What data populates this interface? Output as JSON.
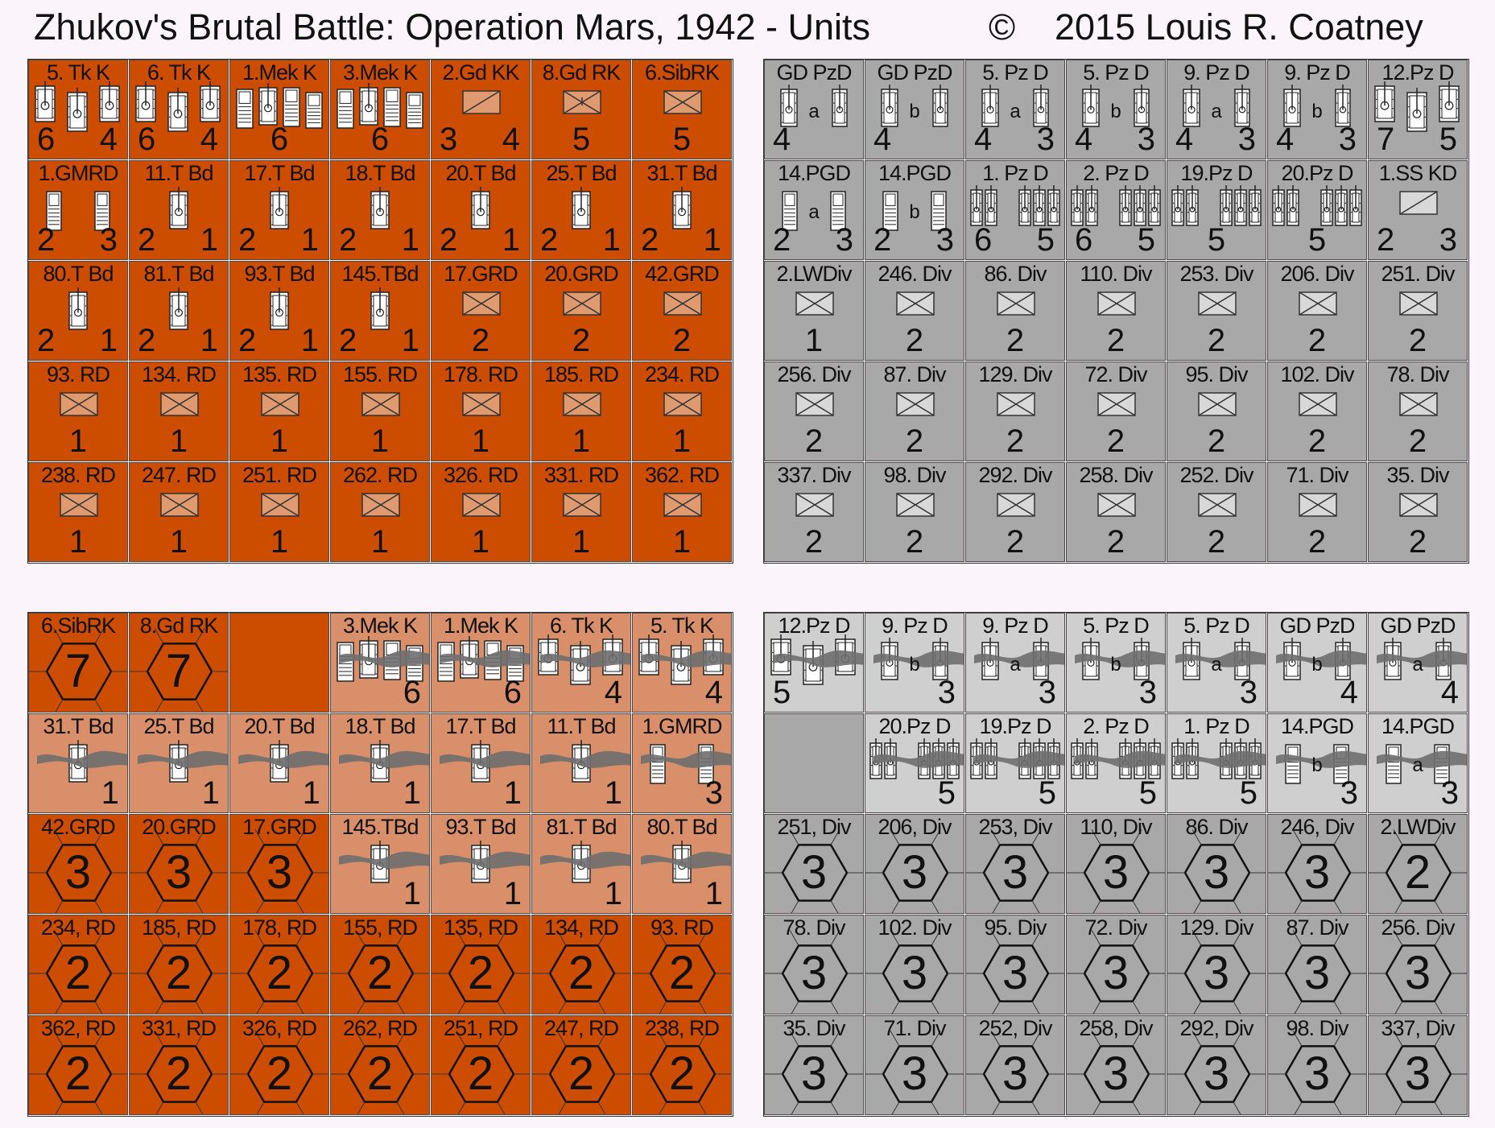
{
  "title": {
    "main": "Zhukov's Brutal Battle:  Operation Mars, 1942 - Units",
    "copyright_symbol": "©",
    "year_author": "2015  Louis R. Coatney"
  },
  "colors": {
    "soviet_full": "#cc4d00",
    "soviet_reduced": "#d9906a",
    "german_full": "#a8a8a8",
    "german_reduced": "#cfcfcf",
    "background": "#fbf5fb"
  },
  "soviet_front": [
    [
      {
        "label": "5. Tk  K",
        "type": "tank3",
        "left": "6",
        "right": "4"
      },
      {
        "label": "6. Tk  K",
        "type": "tank3",
        "left": "6",
        "right": "4"
      },
      {
        "label": "1.Mek K",
        "type": "mech3",
        "center": "6"
      },
      {
        "label": "3.Mek K",
        "type": "mech3",
        "center": "6"
      },
      {
        "label": "2.Gd KK",
        "type": "cav",
        "left": "3",
        "right": "4"
      },
      {
        "label": "8.Gd RK",
        "type": "inf_air",
        "center": "5"
      },
      {
        "label": "6.SibRK",
        "type": "inf",
        "center": "5"
      }
    ],
    [
      {
        "label": "1.GMRD",
        "type": "motor2",
        "left": "2",
        "right": "3"
      },
      {
        "label": "11.T Bd",
        "type": "tank1",
        "left": "2",
        "right": "1"
      },
      {
        "label": "17.T Bd",
        "type": "tank1",
        "left": "2",
        "right": "1"
      },
      {
        "label": "18.T Bd",
        "type": "tank1",
        "left": "2",
        "right": "1"
      },
      {
        "label": "20.T Bd",
        "type": "tank1",
        "left": "2",
        "right": "1"
      },
      {
        "label": "25.T Bd",
        "type": "tank1",
        "left": "2",
        "right": "1"
      },
      {
        "label": "31.T Bd",
        "type": "tank1",
        "left": "2",
        "right": "1"
      }
    ],
    [
      {
        "label": "80.T Bd",
        "type": "tank1",
        "left": "2",
        "right": "1"
      },
      {
        "label": "81.T Bd",
        "type": "tank1",
        "left": "2",
        "right": "1"
      },
      {
        "label": "93.T Bd",
        "type": "tank1",
        "left": "2",
        "right": "1"
      },
      {
        "label": "145.TBd",
        "type": "tank1",
        "left": "2",
        "right": "1"
      },
      {
        "label": "17.GRD",
        "type": "inf",
        "center": "2"
      },
      {
        "label": "20.GRD",
        "type": "inf",
        "center": "2"
      },
      {
        "label": "42.GRD",
        "type": "inf",
        "center": "2"
      }
    ],
    [
      {
        "label": "93. RD",
        "type": "inf",
        "center": "1"
      },
      {
        "label": "134. RD",
        "type": "inf",
        "center": "1"
      },
      {
        "label": "135. RD",
        "type": "inf",
        "center": "1"
      },
      {
        "label": "155. RD",
        "type": "inf",
        "center": "1"
      },
      {
        "label": "178. RD",
        "type": "inf",
        "center": "1"
      },
      {
        "label": "185. RD",
        "type": "inf",
        "center": "1"
      },
      {
        "label": "234. RD",
        "type": "inf",
        "center": "1"
      }
    ],
    [
      {
        "label": "238. RD",
        "type": "inf",
        "center": "1"
      },
      {
        "label": "247. RD",
        "type": "inf",
        "center": "1"
      },
      {
        "label": "251. RD",
        "type": "inf",
        "center": "1"
      },
      {
        "label": "262. RD",
        "type": "inf",
        "center": "1"
      },
      {
        "label": "326. RD",
        "type": "inf",
        "center": "1"
      },
      {
        "label": "331. RD",
        "type": "inf",
        "center": "1"
      },
      {
        "label": "362. RD",
        "type": "inf",
        "center": "1"
      }
    ]
  ],
  "german_front": [
    [
      {
        "label": "GD PzD",
        "type": "tank2",
        "mid": "a",
        "left": "4"
      },
      {
        "label": "GD PzD",
        "type": "tank2",
        "mid": "b",
        "left": "4"
      },
      {
        "label": "5. Pz D",
        "type": "tank2",
        "mid": "a",
        "left": "4",
        "right": "3"
      },
      {
        "label": "5. Pz D",
        "type": "tank2",
        "mid": "b",
        "left": "4",
        "right": "3"
      },
      {
        "label": "9. Pz D",
        "type": "tank2",
        "mid": "a",
        "left": "4",
        "right": "3"
      },
      {
        "label": "9. Pz D",
        "type": "tank2",
        "mid": "b",
        "left": "4",
        "right": "3"
      },
      {
        "label": "12.Pz D",
        "type": "tank3",
        "left": "7",
        "right": "5"
      }
    ],
    [
      {
        "label": "14.PGD",
        "type": "motor2",
        "mid": "a",
        "left": "2",
        "right": "3"
      },
      {
        "label": "14.PGD",
        "type": "motor2",
        "mid": "b",
        "left": "2",
        "right": "3"
      },
      {
        "label": "1. Pz D",
        "type": "tank4",
        "left": "6",
        "right": "5"
      },
      {
        "label": "2. Pz D",
        "type": "tank4",
        "left": "6",
        "right": "5"
      },
      {
        "label": "19.Pz D",
        "type": "tank4",
        "center": "5"
      },
      {
        "label": "20.Pz D",
        "type": "tank4",
        "center": "5"
      },
      {
        "label": "1.SS KD",
        "type": "cav",
        "left": "2",
        "right": "3"
      }
    ],
    [
      {
        "label": "2.LWDiv",
        "type": "inf",
        "center": "1"
      },
      {
        "label": "246. Div",
        "type": "inf",
        "center": "2"
      },
      {
        "label": "86. Div",
        "type": "inf",
        "center": "2"
      },
      {
        "label": "110. Div",
        "type": "inf",
        "center": "2"
      },
      {
        "label": "253. Div",
        "type": "inf",
        "center": "2"
      },
      {
        "label": "206. Div",
        "type": "inf",
        "center": "2"
      },
      {
        "label": "251. Div",
        "type": "inf",
        "center": "2"
      }
    ],
    [
      {
        "label": "256. Div",
        "type": "inf",
        "center": "2"
      },
      {
        "label": "87. Div",
        "type": "inf",
        "center": "2"
      },
      {
        "label": "129. Div",
        "type": "inf",
        "center": "2"
      },
      {
        "label": "72. Div",
        "type": "inf",
        "center": "2"
      },
      {
        "label": "95. Div",
        "type": "inf",
        "center": "2"
      },
      {
        "label": "102. Div",
        "type": "inf",
        "center": "2"
      },
      {
        "label": "78. Div",
        "type": "inf",
        "center": "2"
      }
    ],
    [
      {
        "label": "337. Div",
        "type": "inf",
        "center": "2"
      },
      {
        "label": "98. Div",
        "type": "inf",
        "center": "2"
      },
      {
        "label": "292. Div",
        "type": "inf",
        "center": "2"
      },
      {
        "label": "258. Div",
        "type": "inf",
        "center": "2"
      },
      {
        "label": "252. Div",
        "type": "inf",
        "center": "2"
      },
      {
        "label": "71. Div",
        "type": "inf",
        "center": "2"
      },
      {
        "label": "35. Div",
        "type": "inf",
        "center": "2"
      }
    ]
  ],
  "soviet_back": [
    [
      {
        "label": "6.SibRK",
        "type": "hex",
        "center": "7",
        "shade": "full"
      },
      {
        "label": "8.Gd RK",
        "type": "hex",
        "center": "7",
        "shade": "full"
      },
      {
        "type": "blank",
        "shade": "full"
      },
      {
        "label": "3.Mek K",
        "type": "mech3",
        "right": "6",
        "shade": "reduced",
        "smoke": true
      },
      {
        "label": "1.Mek K",
        "type": "mech3",
        "right": "6",
        "shade": "reduced",
        "smoke": true
      },
      {
        "label": "6. Tk  K",
        "type": "tank3",
        "right": "4",
        "shade": "reduced",
        "smoke": true
      },
      {
        "label": "5. Tk  K",
        "type": "tank3",
        "right": "4",
        "shade": "reduced",
        "smoke": true
      }
    ],
    [
      {
        "label": "31.T Bd",
        "type": "tank1",
        "right": "1",
        "shade": "reduced",
        "smoke": true
      },
      {
        "label": "25.T Bd",
        "type": "tank1",
        "right": "1",
        "shade": "reduced",
        "smoke": true
      },
      {
        "label": "20.T Bd",
        "type": "tank1",
        "right": "1",
        "shade": "reduced",
        "smoke": true
      },
      {
        "label": "18.T Bd",
        "type": "tank1",
        "right": "1",
        "shade": "reduced",
        "smoke": true
      },
      {
        "label": "17.T Bd",
        "type": "tank1",
        "right": "1",
        "shade": "reduced",
        "smoke": true
      },
      {
        "label": "11.T Bd",
        "type": "tank1",
        "right": "1",
        "shade": "reduced",
        "smoke": true
      },
      {
        "label": "1.GMRD",
        "type": "motor2",
        "right": "3",
        "shade": "reduced",
        "smoke": true
      }
    ],
    [
      {
        "label": "42.GRD",
        "type": "hex",
        "center": "3",
        "shade": "full"
      },
      {
        "label": "20.GRD",
        "type": "hex",
        "center": "3",
        "shade": "full"
      },
      {
        "label": "17.GRD",
        "type": "hex",
        "center": "3",
        "shade": "full"
      },
      {
        "label": "145.TBd",
        "type": "tank1",
        "right": "1",
        "shade": "reduced",
        "smoke": true
      },
      {
        "label": "93.T Bd",
        "type": "tank1",
        "right": "1",
        "shade": "reduced",
        "smoke": true
      },
      {
        "label": "81.T Bd",
        "type": "tank1",
        "right": "1",
        "shade": "reduced",
        "smoke": true
      },
      {
        "label": "80.T Bd",
        "type": "tank1",
        "right": "1",
        "shade": "reduced",
        "smoke": true
      }
    ],
    [
      {
        "label": "234, RD",
        "type": "hex",
        "center": "2",
        "shade": "full"
      },
      {
        "label": "185, RD",
        "type": "hex",
        "center": "2",
        "shade": "full"
      },
      {
        "label": "178, RD",
        "type": "hex",
        "center": "2",
        "shade": "full"
      },
      {
        "label": "155, RD",
        "type": "hex",
        "center": "2",
        "shade": "full"
      },
      {
        "label": "135, RD",
        "type": "hex",
        "center": "2",
        "shade": "full"
      },
      {
        "label": "134, RD",
        "type": "hex",
        "center": "2",
        "shade": "full"
      },
      {
        "label": "93. RD",
        "type": "hex",
        "center": "2",
        "shade": "full"
      }
    ],
    [
      {
        "label": "362, RD",
        "type": "hex",
        "center": "2",
        "shade": "full"
      },
      {
        "label": "331, RD",
        "type": "hex",
        "center": "2",
        "shade": "full"
      },
      {
        "label": "326, RD",
        "type": "hex",
        "center": "2",
        "shade": "full"
      },
      {
        "label": "262, RD",
        "type": "hex",
        "center": "2",
        "shade": "full"
      },
      {
        "label": "251, RD",
        "type": "hex",
        "center": "2",
        "shade": "full"
      },
      {
        "label": "247, RD",
        "type": "hex",
        "center": "2",
        "shade": "full"
      },
      {
        "label": "238, RD",
        "type": "hex",
        "center": "2",
        "shade": "full"
      }
    ]
  ],
  "german_back": [
    [
      {
        "label": "12.Pz D",
        "type": "tank3",
        "left": "5",
        "shade": "reduced",
        "smoke": true
      },
      {
        "label": "9. Pz D",
        "type": "tank2",
        "mid": "b",
        "right": "3",
        "shade": "reduced",
        "smoke": true
      },
      {
        "label": "9. Pz D",
        "type": "tank2",
        "mid": "a",
        "right": "3",
        "shade": "reduced",
        "smoke": true
      },
      {
        "label": "5. Pz D",
        "type": "tank2",
        "mid": "b",
        "right": "3",
        "shade": "reduced",
        "smoke": true
      },
      {
        "label": "5. Pz D",
        "type": "tank2",
        "mid": "a",
        "right": "3",
        "shade": "reduced",
        "smoke": true
      },
      {
        "label": "GD PzD",
        "type": "tank2",
        "mid": "b",
        "right": "4",
        "shade": "reduced",
        "smoke": true
      },
      {
        "label": "GD PzD",
        "type": "tank2",
        "mid": "a",
        "right": "4",
        "shade": "reduced",
        "smoke": true
      }
    ],
    [
      {
        "type": "blank",
        "shade": "full"
      },
      {
        "label": "20.Pz D",
        "type": "tank4",
        "right": "5",
        "shade": "reduced",
        "smoke": true
      },
      {
        "label": "19.Pz D",
        "type": "tank4",
        "right": "5",
        "shade": "reduced",
        "smoke": true
      },
      {
        "label": "2. Pz D",
        "type": "tank4",
        "right": "5",
        "shade": "reduced",
        "smoke": true
      },
      {
        "label": "1. Pz D",
        "type": "tank4",
        "right": "5",
        "shade": "reduced",
        "smoke": true
      },
      {
        "label": "14.PGD",
        "type": "motor2",
        "mid": "b",
        "right": "3",
        "shade": "reduced",
        "smoke": true
      },
      {
        "label": "14.PGD",
        "type": "motor2",
        "mid": "a",
        "right": "3",
        "shade": "reduced",
        "smoke": true
      }
    ],
    [
      {
        "label": "251, Div",
        "type": "hex",
        "center": "3",
        "shade": "full"
      },
      {
        "label": "206, Div",
        "type": "hex",
        "center": "3",
        "shade": "full"
      },
      {
        "label": "253, Div",
        "type": "hex",
        "center": "3",
        "shade": "full"
      },
      {
        "label": "110, Div",
        "type": "hex",
        "center": "3",
        "shade": "full"
      },
      {
        "label": "86. Div",
        "type": "hex",
        "center": "3",
        "shade": "full"
      },
      {
        "label": "246, Div",
        "type": "hex",
        "center": "3",
        "shade": "full"
      },
      {
        "label": "2.LWDiv",
        "type": "hex",
        "center": "2",
        "shade": "full"
      }
    ],
    [
      {
        "label": "78. Div",
        "type": "hex",
        "center": "3",
        "shade": "full"
      },
      {
        "label": "102. Div",
        "type": "hex",
        "center": "3",
        "shade": "full"
      },
      {
        "label": "95. Div",
        "type": "hex",
        "center": "3",
        "shade": "full"
      },
      {
        "label": "72. Div",
        "type": "hex",
        "center": "3",
        "shade": "full"
      },
      {
        "label": "129. Div",
        "type": "hex",
        "center": "3",
        "shade": "full"
      },
      {
        "label": "87. Div",
        "type": "hex",
        "center": "3",
        "shade": "full"
      },
      {
        "label": "256. Div",
        "type": "hex",
        "center": "3",
        "shade": "full"
      }
    ],
    [
      {
        "label": "35. Div",
        "type": "hex",
        "center": "3",
        "shade": "full"
      },
      {
        "label": "71. Div",
        "type": "hex",
        "center": "3",
        "shade": "full"
      },
      {
        "label": "252, Div",
        "type": "hex",
        "center": "3",
        "shade": "full"
      },
      {
        "label": "258, Div",
        "type": "hex",
        "center": "3",
        "shade": "full"
      },
      {
        "label": "292, Div",
        "type": "hex",
        "center": "3",
        "shade": "full"
      },
      {
        "label": "98. Div",
        "type": "hex",
        "center": "3",
        "shade": "full"
      },
      {
        "label": "337, Div",
        "type": "hex",
        "center": "3",
        "shade": "full"
      }
    ]
  ]
}
